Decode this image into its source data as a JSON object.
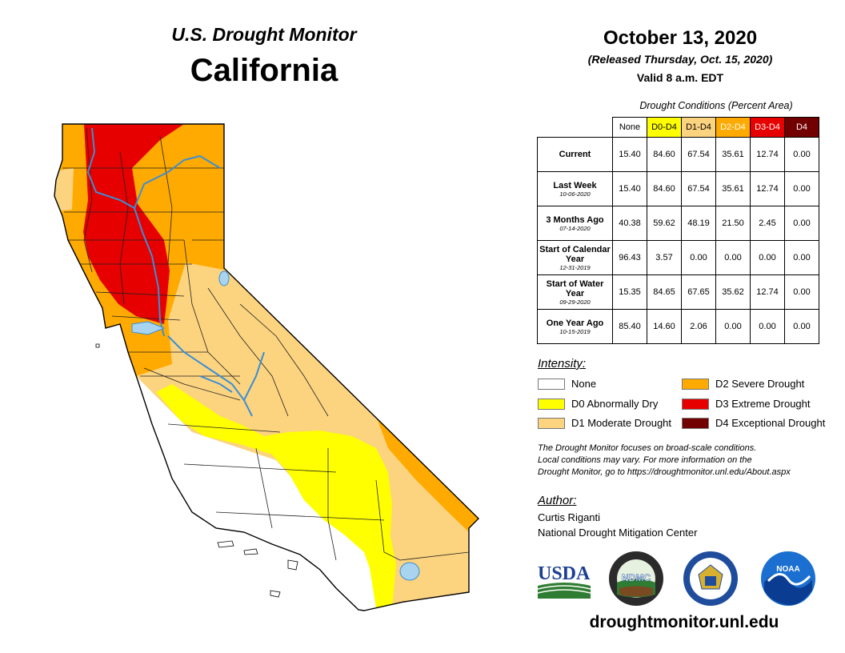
{
  "header": {
    "title": "U.S. Drought Monitor",
    "state": "California",
    "date": "October 13, 2020",
    "released": "(Released Thursday, Oct. 15, 2020)",
    "valid": "Valid 8 a.m. EDT"
  },
  "table": {
    "caption": "Drought Conditions (Percent Area)",
    "columns": [
      "None",
      "D0-D4",
      "D1-D4",
      "D2-D4",
      "D3-D4",
      "D4"
    ],
    "rows": [
      {
        "label": "Current",
        "date": "",
        "values": [
          "15.40",
          "84.60",
          "67.54",
          "35.61",
          "12.74",
          "0.00"
        ]
      },
      {
        "label": "Last Week",
        "date": "10-06-2020",
        "values": [
          "15.40",
          "84.60",
          "67.54",
          "35.61",
          "12.74",
          "0.00"
        ]
      },
      {
        "label": "3 Months Ago",
        "date": "07-14-2020",
        "values": [
          "40.38",
          "59.62",
          "48.19",
          "21.50",
          "2.45",
          "0.00"
        ]
      },
      {
        "label": "Start of Calendar Year",
        "date": "12-31-2019",
        "values": [
          "96.43",
          "3.57",
          "0.00",
          "0.00",
          "0.00",
          "0.00"
        ]
      },
      {
        "label": "Start of Water Year",
        "date": "09-29-2020",
        "values": [
          "15.35",
          "84.65",
          "67.65",
          "35.62",
          "12.74",
          "0.00"
        ]
      },
      {
        "label": "One Year Ago",
        "date": "10-15-2019",
        "values": [
          "85.40",
          "14.60",
          "2.06",
          "0.00",
          "0.00",
          "0.00"
        ]
      }
    ]
  },
  "legend": {
    "title": "Intensity:",
    "items": [
      {
        "label": "None",
        "color": "#ffffff"
      },
      {
        "label": "D0 Abnormally Dry",
        "color": "#ffff00"
      },
      {
        "label": "D1 Moderate Drought",
        "color": "#fcd37f"
      },
      {
        "label": "D2 Severe Drought",
        "color": "#ffaa00"
      },
      {
        "label": "D3 Extreme Drought",
        "color": "#e60000"
      },
      {
        "label": "D4 Exceptional Drought",
        "color": "#730000"
      }
    ]
  },
  "note": {
    "line1": "The Drought Monitor focuses on broad-scale conditions.",
    "line2": "Local conditions may vary. For more information on the",
    "line3": "Drought Monitor, go to https://droughtmonitor.unl.edu/About.aspx"
  },
  "author": {
    "heading": "Author:",
    "name": "Curtis Riganti",
    "org": "National Drought Mitigation Center"
  },
  "logos": {
    "usda": "USDA",
    "ndmc": "NDMC",
    "noaa": "NOAA"
  },
  "footer": {
    "url": "droughtmonitor.unl.edu"
  }
}
